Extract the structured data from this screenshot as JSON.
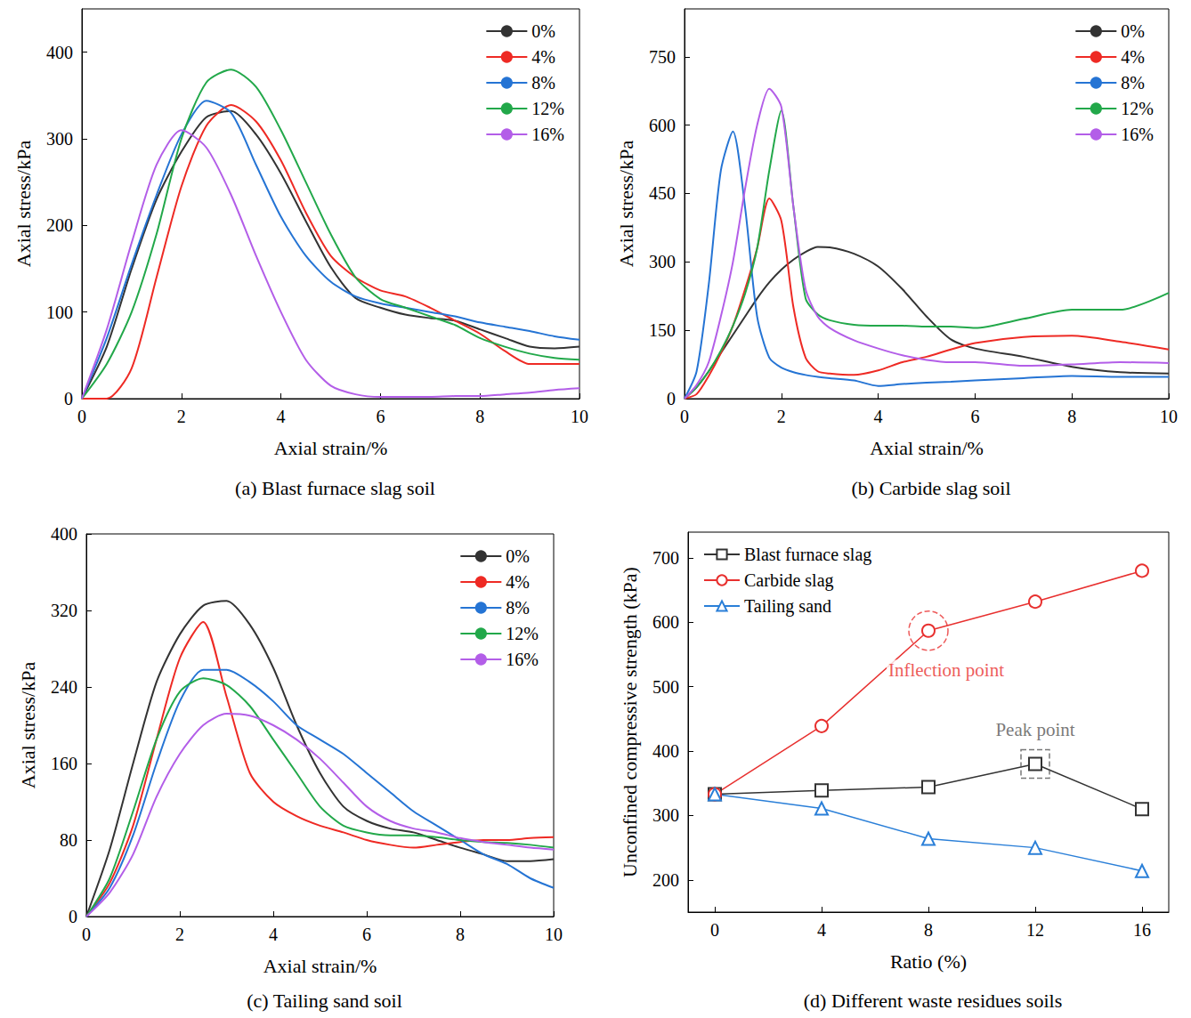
{
  "chart_data": [
    {
      "type": "line",
      "title": "(a) Blast furnace slag soil",
      "x_label": "Axial strain/%",
      "y_label": "Axial stress/kPa",
      "x": [
        0,
        0.5,
        1,
        1.5,
        2,
        2.5,
        3,
        3.5,
        4,
        4.5,
        5,
        5.5,
        6,
        6.5,
        7,
        7.5,
        8,
        8.5,
        9,
        9.5,
        10
      ],
      "series": [
        {
          "name": "0%",
          "color": "#333333",
          "values": [
            0,
            60,
            150,
            230,
            285,
            325,
            332,
            305,
            260,
            205,
            152,
            116,
            105,
            97,
            93,
            90,
            80,
            70,
            60,
            58,
            60
          ]
        },
        {
          "name": "4%",
          "color": "#ee2a24",
          "values": [
            0,
            0,
            35,
            140,
            245,
            315,
            339,
            320,
            275,
            215,
            165,
            140,
            125,
            118,
            105,
            90,
            75,
            55,
            40,
            40,
            40
          ]
        },
        {
          "name": "8%",
          "color": "#2574d4",
          "values": [
            0,
            70,
            155,
            235,
            305,
            344,
            330,
            270,
            210,
            165,
            135,
            118,
            110,
            105,
            100,
            95,
            88,
            83,
            78,
            72,
            68
          ]
        },
        {
          "name": "12%",
          "color": "#22a84a",
          "values": [
            0,
            40,
            100,
            190,
            300,
            365,
            380,
            360,
            310,
            250,
            190,
            140,
            115,
            105,
            95,
            85,
            70,
            60,
            52,
            47,
            45
          ]
        },
        {
          "name": "16%",
          "color": "#b35ee8",
          "values": [
            0,
            80,
            180,
            270,
            310,
            290,
            235,
            165,
            100,
            45,
            15,
            5,
            2,
            2,
            2,
            3,
            3,
            5,
            7,
            10,
            12
          ]
        }
      ],
      "xlim": [
        0,
        10
      ],
      "xticks": [
        0,
        2,
        4,
        6,
        8,
        10
      ],
      "ylim": [
        0,
        450
      ],
      "yticks": [
        0,
        100,
        200,
        300,
        400
      ],
      "legend": "upper right",
      "grid": false
    },
    {
      "type": "line",
      "title": "(b) Carbide slag soil",
      "x_label": "Axial strain/%",
      "y_label": "Axial stress/kPa",
      "x": [
        0,
        0.25,
        0.5,
        0.75,
        1,
        1.25,
        1.5,
        1.75,
        2,
        2.25,
        2.5,
        2.75,
        3,
        3.5,
        4,
        4.5,
        5,
        5.5,
        6,
        7,
        8,
        9,
        10
      ],
      "series": [
        {
          "name": "0%",
          "color": "#333333",
          "values": [
            0,
            25,
            60,
            100,
            140,
            180,
            220,
            255,
            283,
            305,
            322,
            333,
            332,
            318,
            290,
            240,
            180,
            130,
            110,
            92,
            70,
            58,
            55
          ]
        },
        {
          "name": "4%",
          "color": "#ee2a24",
          "values": [
            0,
            10,
            50,
            100,
            160,
            240,
            330,
            439,
            390,
            200,
            90,
            60,
            55,
            52,
            62,
            80,
            92,
            108,
            122,
            135,
            138,
            125,
            108
          ]
        },
        {
          "name": "8%",
          "color": "#2574d4",
          "values": [
            0,
            60,
            250,
            500,
            586,
            420,
            180,
            90,
            68,
            58,
            52,
            48,
            45,
            40,
            28,
            32,
            35,
            37,
            40,
            45,
            50,
            48,
            48
          ]
        },
        {
          "name": "12%",
          "color": "#22a84a",
          "values": [
            0,
            25,
            60,
            105,
            160,
            230,
            330,
            500,
            632,
            420,
            220,
            185,
            172,
            162,
            160,
            160,
            158,
            158,
            155,
            175,
            195,
            195,
            232
          ]
        },
        {
          "name": "16%",
          "color": "#b35ee8",
          "values": [
            0,
            30,
            80,
            180,
            300,
            460,
            600,
            680,
            640,
            420,
            240,
            180,
            155,
            128,
            110,
            95,
            85,
            80,
            80,
            72,
            75,
            80,
            78
          ]
        }
      ],
      "xlim": [
        0,
        10
      ],
      "xticks": [
        0,
        2,
        4,
        6,
        8,
        10
      ],
      "ylim": [
        0,
        855
      ],
      "yticks": [
        0,
        150,
        300,
        450,
        600,
        750
      ],
      "legend": "upper right",
      "grid": false
    },
    {
      "type": "line",
      "title": "(c) Tailing sand soil",
      "x_label": "Axial strain/%",
      "y_label": "Axial stress/kPa",
      "x": [
        0,
        0.5,
        1,
        1.5,
        2,
        2.5,
        3,
        3.5,
        4,
        4.5,
        5,
        5.5,
        6,
        6.5,
        7,
        7.5,
        8,
        8.5,
        9,
        9.5,
        10
      ],
      "series": [
        {
          "name": "0%",
          "color": "#333333",
          "values": [
            0,
            70,
            160,
            245,
            295,
            325,
            330,
            305,
            260,
            200,
            150,
            115,
            100,
            92,
            88,
            80,
            72,
            65,
            58,
            58,
            60
          ]
        },
        {
          "name": "4%",
          "color": "#ee2a24",
          "values": [
            0,
            35,
            95,
            185,
            270,
            308,
            230,
            150,
            120,
            105,
            95,
            88,
            80,
            75,
            72,
            75,
            78,
            80,
            80,
            82,
            83
          ]
        },
        {
          "name": "8%",
          "color": "#2574d4",
          "values": [
            0,
            30,
            85,
            160,
            225,
            258,
            258,
            245,
            225,
            200,
            185,
            170,
            150,
            130,
            110,
            95,
            80,
            65,
            55,
            40,
            30
          ]
        },
        {
          "name": "12%",
          "color": "#22a84a",
          "values": [
            0,
            40,
            110,
            185,
            235,
            249,
            242,
            220,
            185,
            150,
            115,
            95,
            88,
            85,
            85,
            83,
            80,
            78,
            77,
            75,
            72
          ]
        },
        {
          "name": "16%",
          "color": "#b35ee8",
          "values": [
            0,
            25,
            65,
            125,
            170,
            200,
            212,
            210,
            200,
            185,
            165,
            140,
            115,
            100,
            92,
            88,
            82,
            78,
            75,
            72,
            70
          ]
        }
      ],
      "xlim": [
        0,
        10
      ],
      "xticks": [
        0,
        2,
        4,
        6,
        8,
        10
      ],
      "ylim": [
        0,
        400
      ],
      "yticks": [
        0,
        80,
        160,
        240,
        320,
        400
      ],
      "legend": "upper right",
      "grid": false
    },
    {
      "type": "line",
      "title": "(d) Different waste residues soils",
      "x_label": "Ratio (%)",
      "y_label": "Unconfined compressive strength (kPa)",
      "x": [
        0,
        4,
        8,
        12,
        16
      ],
      "series": [
        {
          "name": "Blast furnace slag",
          "color": "#333333",
          "marker": "square",
          "values": [
            333,
            339,
            344,
            380,
            310
          ]
        },
        {
          "name": "Carbide slag",
          "color": "#e8302f",
          "marker": "circle",
          "values": [
            333,
            439,
            587,
            632,
            680
          ]
        },
        {
          "name": "Tailing sand",
          "color": "#2a7fd8",
          "marker": "triangle",
          "values": [
            333,
            311,
            264,
            250,
            214
          ]
        }
      ],
      "annotations": [
        {
          "text": "Inflection point",
          "x": 8,
          "y": 587,
          "color": "#e8302f",
          "marker": "circle"
        },
        {
          "text": "Peak point",
          "x": 12,
          "y": 380,
          "color": "#555555",
          "marker": "square"
        }
      ],
      "xlim": [
        -1,
        17
      ],
      "xticks": [
        0,
        4,
        8,
        12,
        16
      ],
      "ylim": [
        150,
        740
      ],
      "yticks": [
        200,
        300,
        400,
        500,
        600,
        700
      ],
      "legend": "upper left",
      "grid": false
    }
  ]
}
